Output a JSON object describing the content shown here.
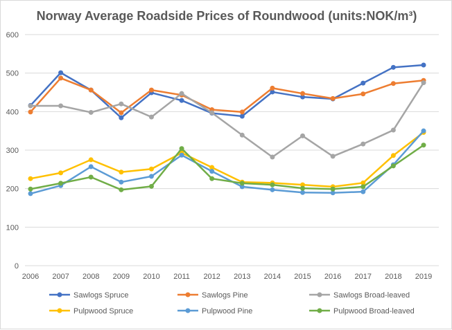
{
  "chart_data": {
    "type": "line",
    "title": "Norway Average Roadside Prices of Roundwood (units:NOK/m³)",
    "xlabel": "",
    "ylabel": "",
    "ylim": [
      0,
      600
    ],
    "yticks": [
      "0",
      "100",
      "200",
      "300",
      "400",
      "500",
      "600"
    ],
    "grid": true,
    "legend_position": "bottom",
    "categories": [
      "2006",
      "2007",
      "2008",
      "2009",
      "2010",
      "2011",
      "2012",
      "2013",
      "2014",
      "2015",
      "2016",
      "2017",
      "2018",
      "2019"
    ],
    "series": [
      {
        "name": "Sawlogs Spruce",
        "color": "#4472c4",
        "values": [
          416,
          501,
          456,
          384,
          449,
          429,
          396,
          388,
          451,
          438,
          433,
          474,
          515,
          521
        ]
      },
      {
        "name": "Sawlogs Pine",
        "color": "#ed7d31",
        "values": [
          399,
          487,
          456,
          397,
          456,
          443,
          405,
          399,
          461,
          447,
          434,
          446,
          473,
          481
        ]
      },
      {
        "name": "Sawlogs Broad-leaved",
        "color": "#a5a5a5",
        "values": [
          415,
          415,
          398,
          420,
          386,
          447,
          397,
          339,
          282,
          337,
          284,
          316,
          352,
          475
        ]
      },
      {
        "name": "Pulpwood Spruce",
        "color": "#ffc000",
        "values": [
          226,
          241,
          275,
          243,
          251,
          293,
          255,
          217,
          215,
          210,
          205,
          215,
          286,
          346
        ]
      },
      {
        "name": "Pulpwood Pine",
        "color": "#5b9bd5",
        "values": [
          187,
          208,
          257,
          217,
          232,
          287,
          245,
          205,
          197,
          190,
          189,
          192,
          262,
          350
        ]
      },
      {
        "name": "Pulpwood Broad-leaved",
        "color": "#70ad47",
        "values": [
          199,
          214,
          230,
          197,
          206,
          304,
          226,
          214,
          210,
          201,
          199,
          205,
          259,
          313
        ]
      }
    ]
  }
}
